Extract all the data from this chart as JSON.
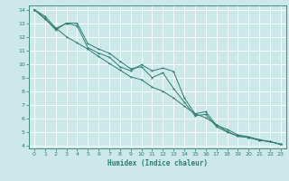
{
  "xlabel": "Humidex (Indice chaleur)",
  "ylabel": "",
  "background_color": "#cce8e8",
  "grid_color": "#ffffff",
  "line_color": "#2e7d6e",
  "xlim": [
    -0.5,
    23.5
  ],
  "ylim": [
    3.8,
    14.3
  ],
  "xticks": [
    0,
    1,
    2,
    3,
    4,
    5,
    6,
    7,
    8,
    9,
    10,
    11,
    12,
    13,
    14,
    15,
    16,
    17,
    18,
    19,
    20,
    21,
    22,
    23
  ],
  "yticks": [
    4,
    5,
    6,
    7,
    8,
    9,
    10,
    11,
    12,
    13,
    14
  ],
  "line1_x": [
    0,
    1,
    2,
    3,
    4,
    5,
    6,
    7,
    8,
    9,
    10,
    11,
    12,
    13,
    14,
    15,
    16,
    17,
    18,
    19,
    20,
    21,
    22,
    23
  ],
  "line1_y": [
    14.0,
    13.35,
    12.5,
    13.0,
    12.8,
    11.2,
    10.8,
    10.5,
    9.8,
    9.5,
    9.95,
    9.5,
    9.7,
    9.45,
    7.5,
    6.35,
    6.5,
    5.5,
    5.2,
    4.8,
    4.65,
    4.45,
    4.3,
    4.1
  ],
  "line2_x": [
    0,
    1,
    2,
    3,
    4,
    5,
    6,
    7,
    8,
    9,
    10,
    11,
    12,
    13,
    14,
    15,
    16,
    17,
    18,
    19,
    20,
    21,
    22,
    23
  ],
  "line2_y": [
    14.0,
    13.3,
    12.6,
    13.0,
    13.0,
    11.5,
    11.1,
    10.8,
    10.2,
    9.65,
    9.8,
    9.0,
    9.35,
    8.2,
    7.2,
    6.2,
    6.3,
    5.4,
    5.0,
    4.7,
    4.6,
    4.4,
    4.3,
    4.1
  ],
  "line3_x": [
    0,
    1,
    2,
    3,
    4,
    5,
    6,
    7,
    8,
    9,
    10,
    11,
    12,
    13,
    14,
    15,
    16,
    17,
    18,
    19,
    20,
    21,
    22,
    23
  ],
  "line3_y": [
    14.0,
    13.5,
    12.65,
    12.0,
    11.55,
    11.1,
    10.55,
    10.05,
    9.55,
    9.05,
    8.85,
    8.3,
    8.0,
    7.5,
    6.9,
    6.35,
    6.05,
    5.55,
    5.05,
    4.7,
    4.6,
    4.4,
    4.3,
    4.1
  ]
}
